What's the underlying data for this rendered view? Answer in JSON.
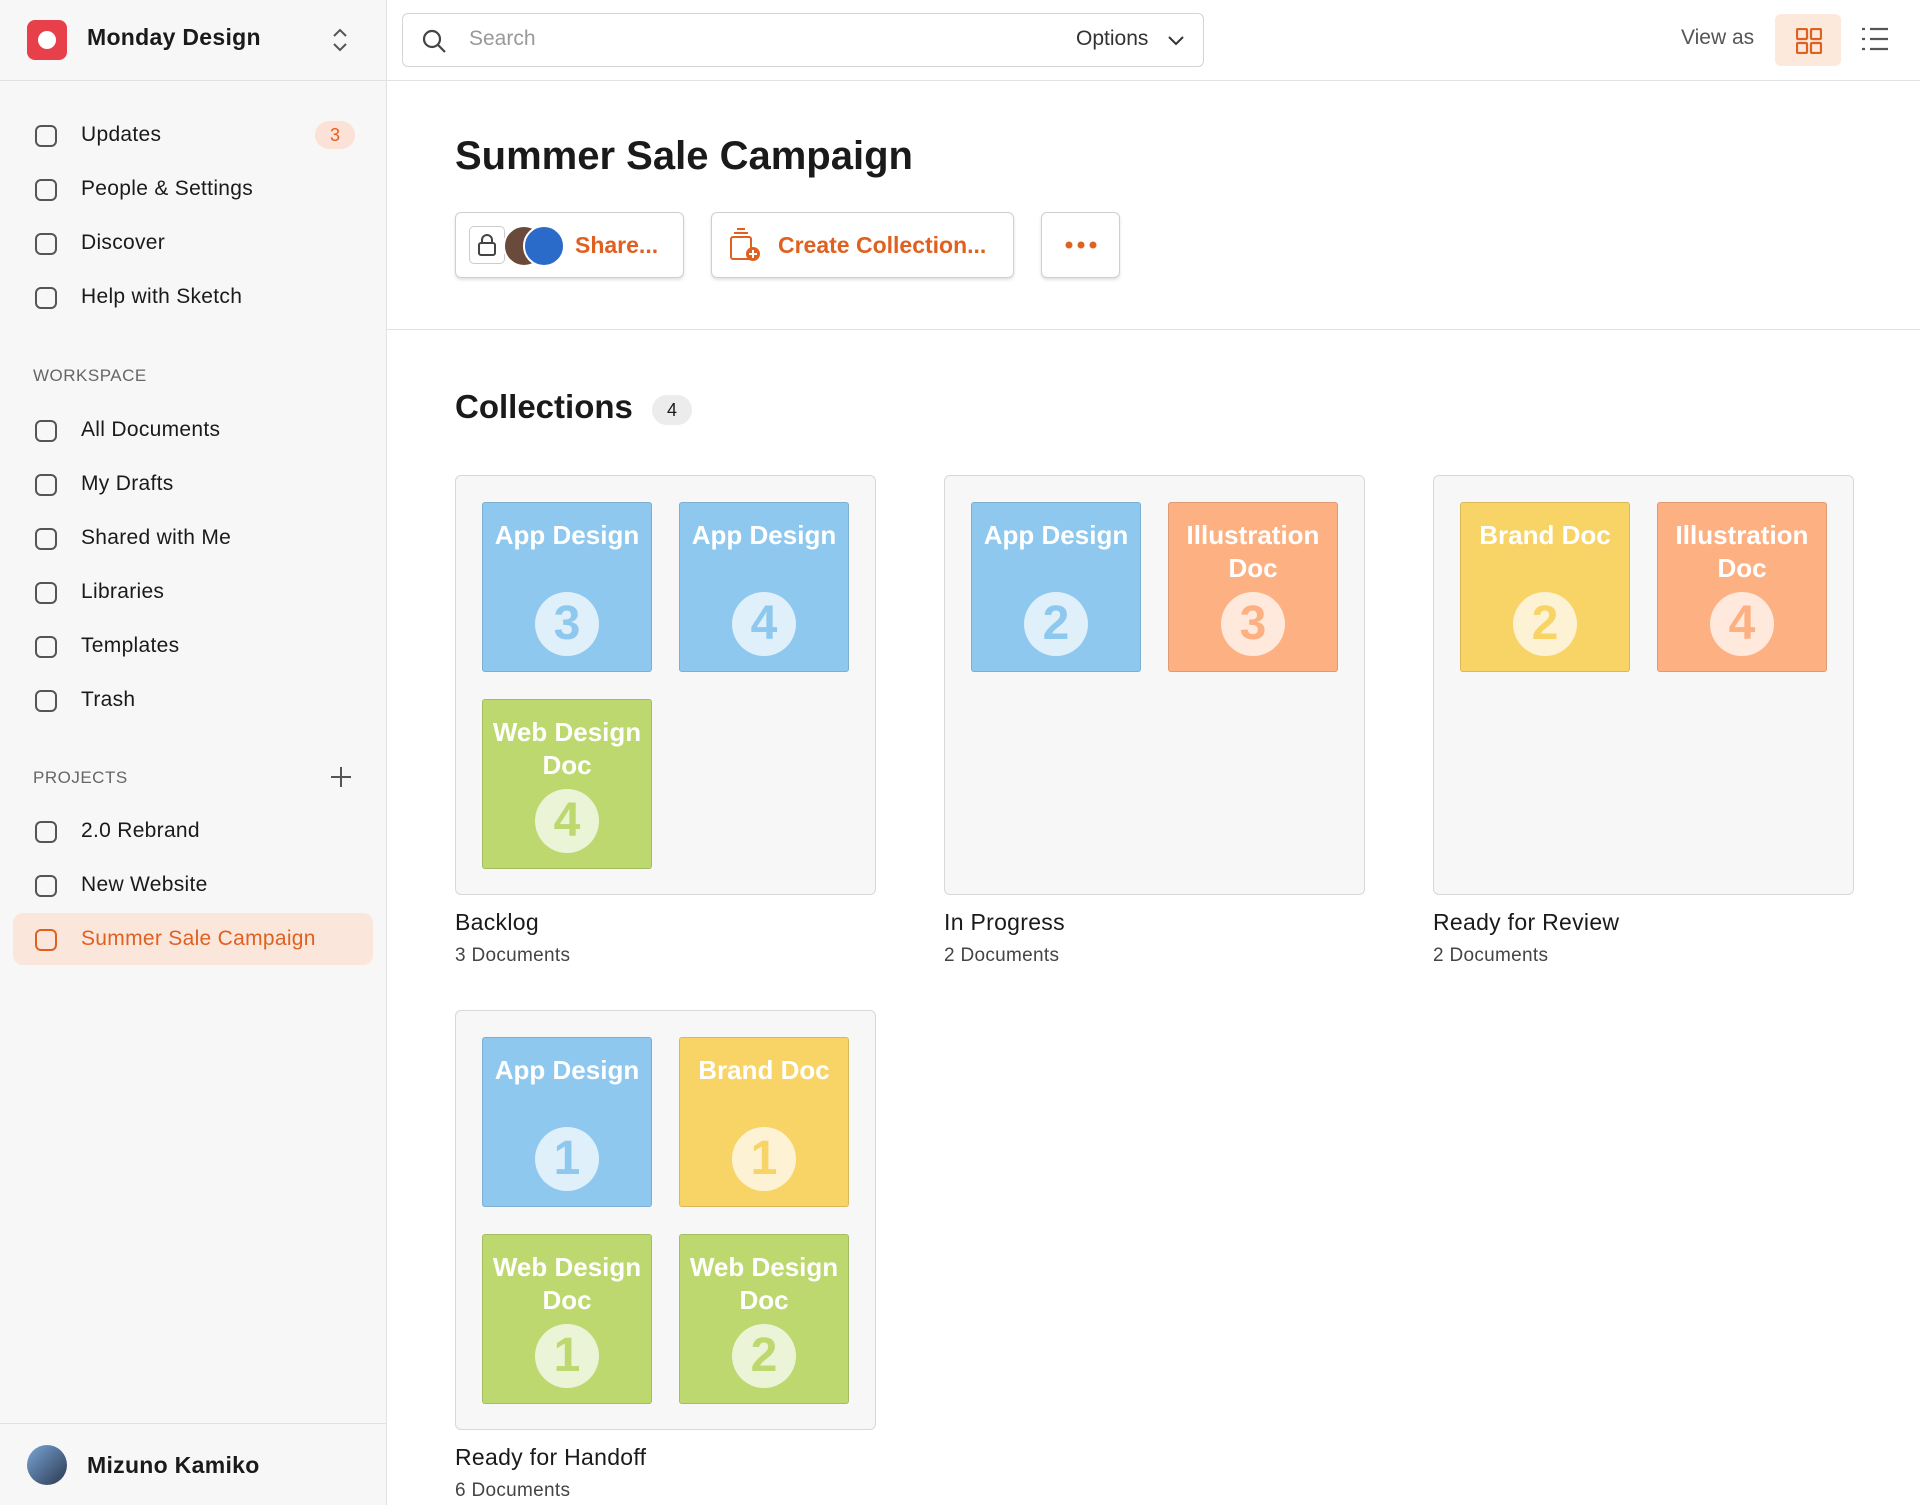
{
  "workspace": {
    "name": "Monday Design"
  },
  "search": {
    "placeholder": "Search",
    "options": "Options"
  },
  "view": {
    "label": "View as"
  },
  "nav": [
    {
      "label": "Updates",
      "badge": 3
    },
    {
      "label": "People & Settings"
    },
    {
      "label": "Discover"
    },
    {
      "label": "Help with Sketch"
    }
  ],
  "workspace_section": {
    "title": "WORKSPACE",
    "items": [
      "All Documents",
      "My Drafts",
      "Shared with Me",
      "Libraries",
      "Templates",
      "Trash"
    ]
  },
  "projects": {
    "title": "PROJECTS",
    "items": [
      "2.0 Rebrand",
      "New Website",
      "Summer Sale Campaign"
    ]
  },
  "user": {
    "name": "Mizuno Kamiko"
  },
  "page": {
    "title": "Summer Sale Campaign",
    "share": "Share...",
    "create": "Create Collection..."
  },
  "collections": {
    "title": "Collections",
    "count": 4,
    "items": [
      {
        "name": "Backlog",
        "subtitle": "3 Documents",
        "docs": [
          {
            "label": "App Design",
            "number": 3,
            "color": "#8ec8ee"
          },
          {
            "label": "App Design",
            "number": 4,
            "color": "#8ec8ee"
          },
          {
            "label": "Web Design Doc",
            "number": 4,
            "color": "#bcd86f"
          }
        ]
      },
      {
        "name": "In Progress",
        "subtitle": "2 Documents",
        "docs": [
          {
            "label": "App Design",
            "number": 2,
            "color": "#8ec8ee"
          },
          {
            "label": "Illustration Doc",
            "number": 3,
            "color": "#fdb183"
          }
        ]
      },
      {
        "name": "Ready for Review",
        "subtitle": "2 Documents",
        "docs": [
          {
            "label": "Brand Doc",
            "number": 2,
            "color": "#f8d366"
          },
          {
            "label": "Illustration Doc",
            "number": 4,
            "color": "#fdb183"
          }
        ]
      },
      {
        "name": "Ready for Handoff",
        "subtitle": "6 Documents",
        "docs": [
          {
            "label": "App Design",
            "number": 1,
            "color": "#8ec8ee"
          },
          {
            "label": "Brand Doc",
            "number": 1,
            "color": "#f8d366"
          },
          {
            "label": "Web Design Doc",
            "number": 1,
            "color": "#bcd86f"
          },
          {
            "label": "Web Design Doc",
            "number": 2,
            "color": "#bcd86f"
          }
        ]
      }
    ]
  }
}
